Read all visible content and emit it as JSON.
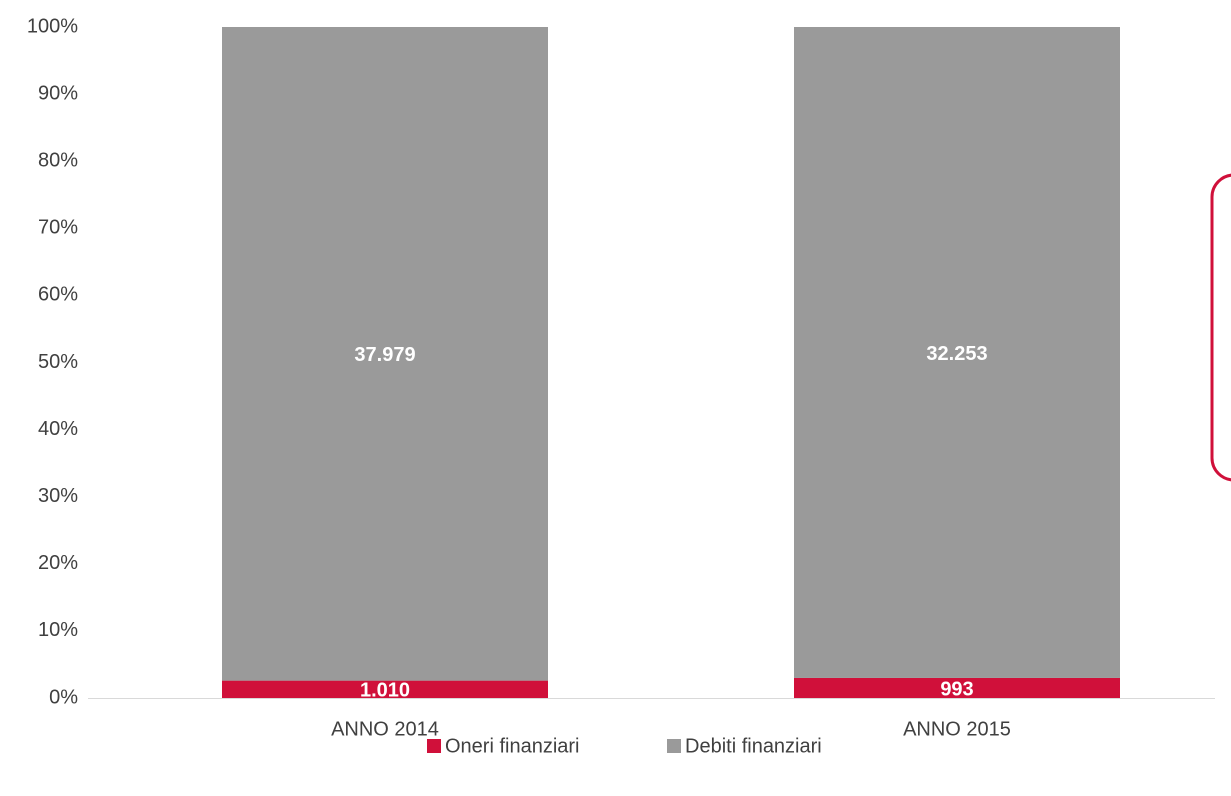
{
  "chart_data": {
    "type": "bar",
    "stacking": "percent",
    "categories": [
      "ANNO 2014",
      "ANNO 2015"
    ],
    "series": [
      {
        "name": "Oneri finanziari",
        "color": "#d0103a",
        "values": [
          1010,
          993
        ],
        "value_labels": [
          "1.010",
          "993"
        ]
      },
      {
        "name": "Debiti finanziari",
        "color": "#9a9a9a",
        "values": [
          37979,
          32253
        ],
        "value_labels": [
          "37.979",
          "32.253"
        ]
      }
    ],
    "ylim": [
      0,
      100
    ],
    "yticks": [
      {
        "value": 0,
        "label": "0%"
      },
      {
        "value": 10,
        "label": "10%"
      },
      {
        "value": 20,
        "label": "20%"
      },
      {
        "value": 30,
        "label": "30%"
      },
      {
        "value": 40,
        "label": "40%"
      },
      {
        "value": 50,
        "label": "50%"
      },
      {
        "value": 60,
        "label": "60%"
      },
      {
        "value": 70,
        "label": "70%"
      },
      {
        "value": 80,
        "label": "80%"
      },
      {
        "value": 90,
        "label": "90%"
      },
      {
        "value": 100,
        "label": "100%"
      }
    ],
    "grid": false,
    "legend": "bottom"
  }
}
